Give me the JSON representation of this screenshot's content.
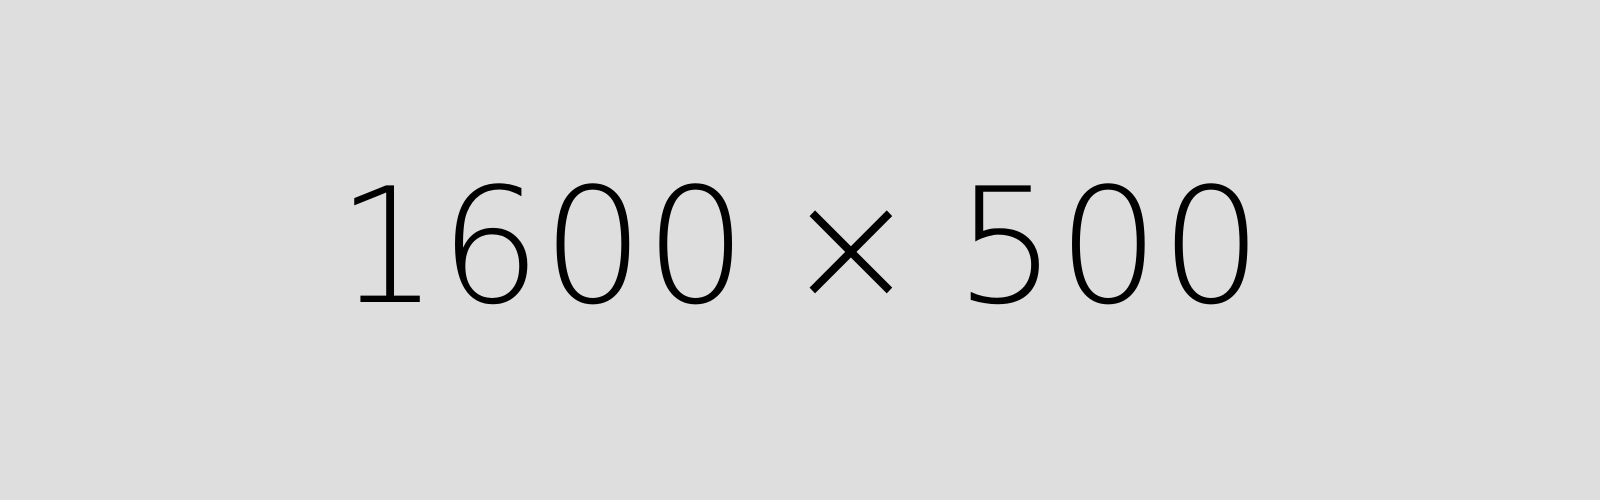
{
  "placeholder": {
    "width_text": "1600",
    "separator": "×",
    "height_text": "500",
    "background_color": "#dedede",
    "text_color": "#000000"
  }
}
